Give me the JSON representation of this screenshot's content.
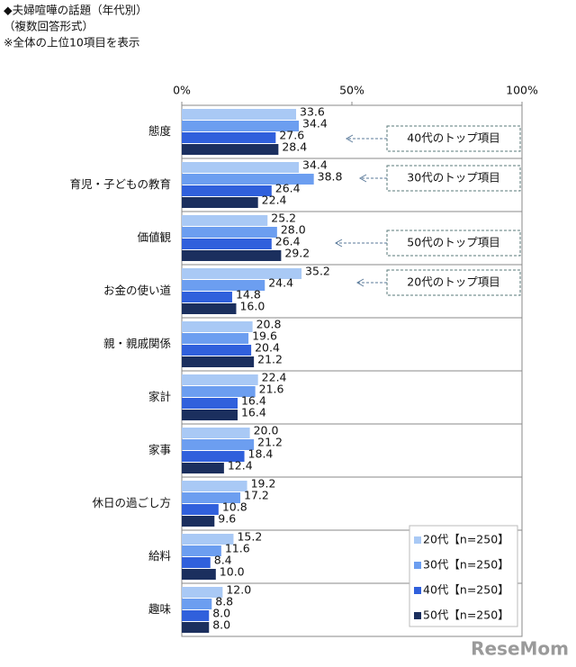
{
  "chart_data": {
    "type": "hbar",
    "title": "◆夫婦喧嘩の話題（年代別）",
    "subtitle": "（複数回答形式）",
    "note": "※全体の上位10項目を表示",
    "categories": [
      "態度",
      "育児・子どもの教育",
      "価値観",
      "お金の使い道",
      "親・親戚関係",
      "家計",
      "家事",
      "休日の過ごし方",
      "給料",
      "趣味"
    ],
    "series": [
      {
        "name": "20代【n=250】",
        "color": "#a9c9f5",
        "values": [
          33.6,
          34.4,
          25.2,
          35.2,
          20.8,
          22.4,
          20.0,
          19.2,
          15.2,
          12.0
        ],
        "value_labels": [
          "33.6",
          "34.4",
          "25.2",
          "35.2",
          "20.8",
          "22.4",
          "20.0",
          "19.2",
          "15.2",
          "12.0"
        ]
      },
      {
        "name": "30代【n=250】",
        "color": "#6c9ef0",
        "values": [
          34.4,
          38.8,
          28.0,
          24.4,
          19.6,
          21.6,
          21.2,
          17.2,
          11.6,
          8.8
        ],
        "value_labels": [
          "34.4",
          "38.8",
          "28.0",
          "24.4",
          "19.6",
          "21.6",
          "21.2",
          "17.2",
          "11.6",
          "8.8"
        ]
      },
      {
        "name": "40代【n=250】",
        "color": "#3060dc",
        "values": [
          27.6,
          26.4,
          26.4,
          14.8,
          20.4,
          16.4,
          18.4,
          10.8,
          8.4,
          8.0
        ],
        "value_labels": [
          "27.6",
          "26.4",
          "26.4",
          "14.8",
          "20.4",
          "16.4",
          "18.4",
          "10.8",
          "8.4",
          "8.0"
        ]
      },
      {
        "name": "50代【n=250】",
        "color": "#1b2f5e",
        "values": [
          28.4,
          22.4,
          29.2,
          16.0,
          21.2,
          16.4,
          12.4,
          9.6,
          10.0,
          8.0
        ],
        "value_labels": [
          "28.4",
          "22.4",
          "29.2",
          "16.0",
          "21.2",
          "16.4",
          "12.4",
          "9.6",
          "10.0",
          "8.0"
        ]
      }
    ],
    "xlim": [
      0,
      100
    ],
    "xticks": [
      {
        "value": 0,
        "label": "0%"
      },
      {
        "value": 50,
        "label": "50%"
      },
      {
        "value": 100,
        "label": "100%"
      }
    ],
    "annotations": [
      "40代のトップ項目",
      "30代のトップ項目",
      "50代のトップ項目",
      "20代のトップ項目"
    ],
    "legend": "lower right",
    "watermark": "ReseMom"
  }
}
